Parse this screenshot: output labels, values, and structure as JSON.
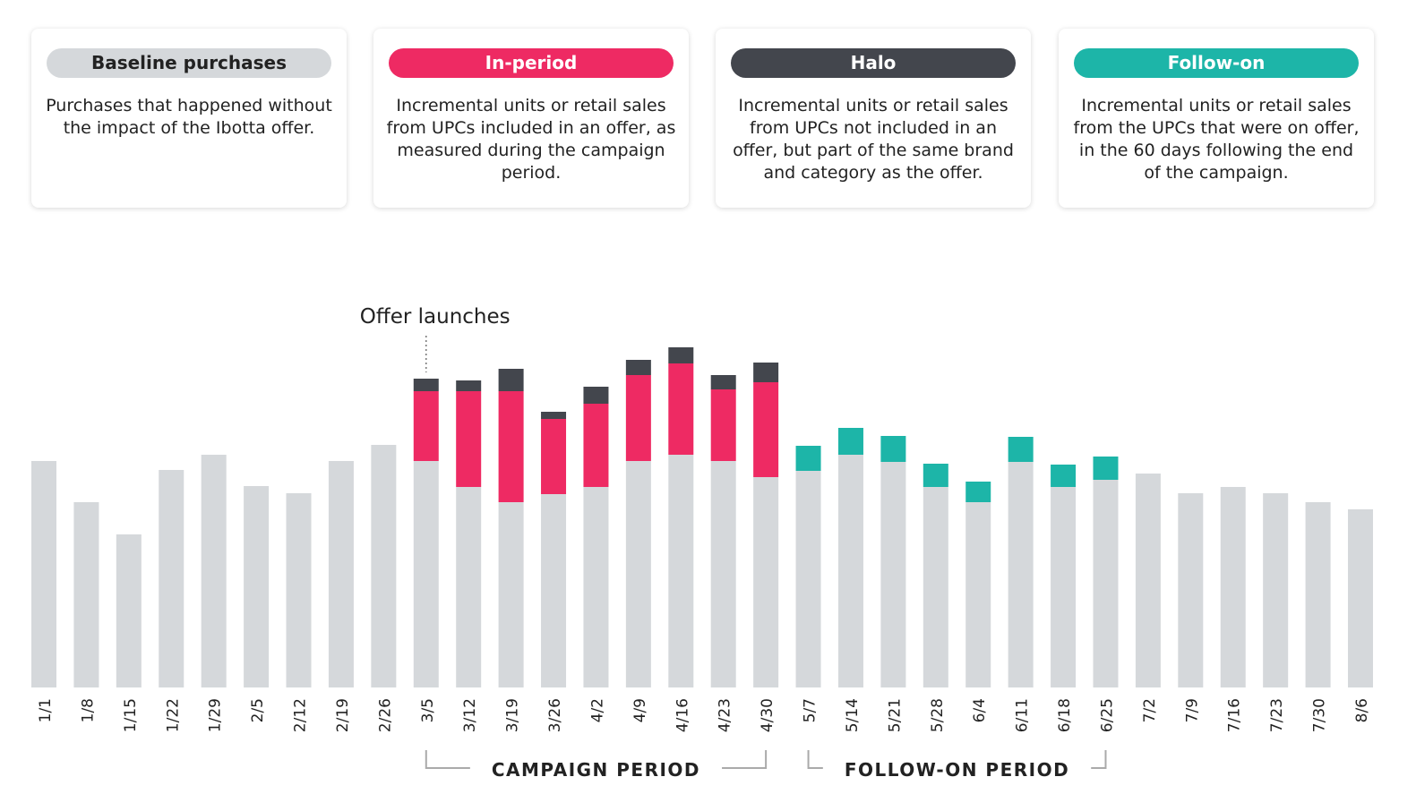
{
  "chart_data": {
    "type": "bar",
    "stacked": true,
    "categories": [
      "1/1",
      "1/8",
      "1/15",
      "1/22",
      "1/29",
      "2/5",
      "2/12",
      "2/19",
      "2/26",
      "3/5",
      "3/12",
      "3/19",
      "3/26",
      "4/2",
      "4/9",
      "4/16",
      "4/23",
      "4/30",
      "5/7",
      "5/14",
      "5/21",
      "5/28",
      "6/4",
      "6/11",
      "6/18",
      "6/25",
      "7/2",
      "7/9",
      "7/16",
      "7/23",
      "7/30",
      "8/6"
    ],
    "series": [
      {
        "name": "Baseline purchases",
        "color": "#d5d8db",
        "text_color": "#222222",
        "description": "Purchases that happened without the impact of the Ibotta offer.",
        "values": [
          253,
          207,
          171,
          243,
          260,
          225,
          217,
          253,
          271,
          253,
          224,
          207,
          216,
          224,
          253,
          260,
          253,
          235,
          242,
          260,
          252,
          224,
          207,
          252,
          224,
          232,
          239,
          217,
          224,
          217,
          207,
          199
        ]
      },
      {
        "name": "In-period",
        "color": "#ee2a63",
        "text_color": "#ffffff",
        "description": "Incremental units or retail sales from UPCs included in an offer, as measured during the campaign period.",
        "values": [
          null,
          null,
          null,
          null,
          null,
          null,
          null,
          null,
          null,
          78,
          107,
          124,
          84,
          93,
          96,
          102,
          80,
          106,
          null,
          null,
          null,
          null,
          null,
          null,
          null,
          null,
          null,
          null,
          null,
          null,
          null,
          null
        ]
      },
      {
        "name": "Halo",
        "color": "#43464d",
        "text_color": "#ffffff",
        "description": "Incremental units or retail sales from UPCs not included in an offer, but part of the same brand and category as the offer.",
        "values": [
          null,
          null,
          null,
          null,
          null,
          null,
          null,
          null,
          null,
          14,
          12,
          25,
          8,
          19,
          17,
          18,
          16,
          22,
          null,
          null,
          null,
          null,
          null,
          null,
          null,
          null,
          null,
          null,
          null,
          null,
          null,
          null
        ]
      },
      {
        "name": "Follow-on",
        "color": "#1db5a8",
        "text_color": "#ffffff",
        "description": "Incremental units or retail sales from the UPCs that were on offer, in the 60 days following the end of the campaign.",
        "values": [
          null,
          null,
          null,
          null,
          null,
          null,
          null,
          null,
          null,
          null,
          null,
          null,
          null,
          null,
          null,
          null,
          null,
          null,
          28,
          30,
          29,
          26,
          23,
          28,
          25,
          26,
          null,
          null,
          null,
          null,
          null,
          null
        ]
      }
    ],
    "ylim": [
      0,
      400
    ],
    "annotations": [
      {
        "text": "Offer launches",
        "at": "3/5"
      }
    ],
    "periods": [
      {
        "label": "CAMPAIGN PERIOD",
        "from": "3/5",
        "to": "4/30"
      },
      {
        "label": "FOLLOW-ON PERIOD",
        "from": "5/7",
        "to": "6/25"
      }
    ]
  }
}
